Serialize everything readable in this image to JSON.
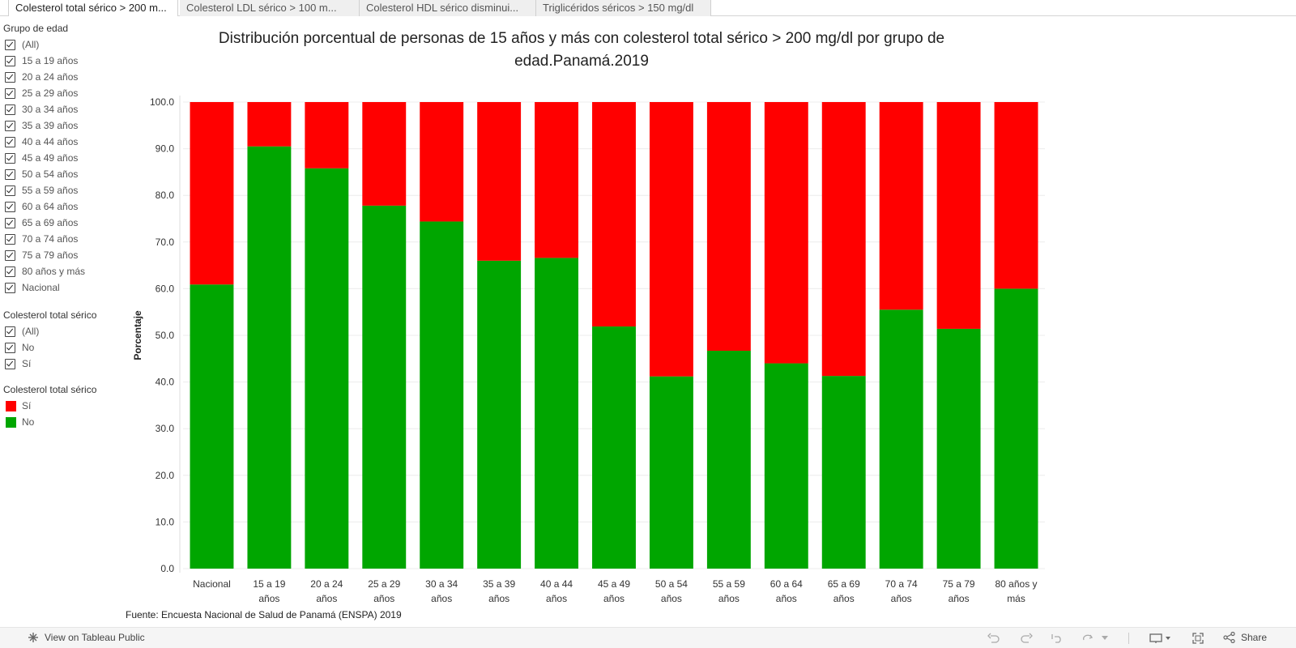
{
  "tabs": [
    "Colesterol total sérico > 200 m...",
    "Colesterol LDL sérico > 100 m...",
    "Colesterol HDL sérico disminui...",
    "Triglicéridos séricos > 150 mg/dl"
  ],
  "filters": {
    "age_group": {
      "title": "Grupo de edad",
      "items": [
        "(All)",
        "15 a 19 años",
        "20 a 24 años",
        "25 a 29 años",
        "30 a 34 años",
        "35 a 39 años",
        "40 a 44 años",
        "45 a 49 años",
        "50 a 54 años",
        "55 a 59 años",
        "60 a 64 años",
        "65 a 69 años",
        "70 a 74 años",
        "75 a 79 años",
        "80 años y más",
        "Nacional"
      ]
    },
    "cholesterol": {
      "title": "Colesterol total sérico",
      "items": [
        "(All)",
        "No",
        "Sí"
      ]
    }
  },
  "legend": {
    "title": "Colesterol total sérico",
    "items": [
      {
        "label": "Sí",
        "color": "#ff0000"
      },
      {
        "label": "No",
        "color": "#00a600"
      }
    ]
  },
  "chart_data": {
    "type": "bar",
    "stacked": true,
    "title": "Distribución porcentual de personas de 15 años y más con colesterol total sérico > 200 mg/dl por grupo de edad.Panamá.2019",
    "ylabel": "Porcentaje",
    "xlabel": "",
    "ylim": [
      0,
      100
    ],
    "yticks": [
      "0.0",
      "10.0",
      "20.0",
      "30.0",
      "40.0",
      "50.0",
      "60.0",
      "70.0",
      "80.0",
      "90.0",
      "100.0"
    ],
    "categories": [
      [
        "Nacional"
      ],
      [
        "15 a 19",
        "años"
      ],
      [
        "20 a 24",
        "años"
      ],
      [
        "25 a 29",
        "años"
      ],
      [
        "30 a 34",
        "años"
      ],
      [
        "35 a 39",
        "años"
      ],
      [
        "40 a 44",
        "años"
      ],
      [
        "45 a 49",
        "años"
      ],
      [
        "50 a 54",
        "años"
      ],
      [
        "55 a 59",
        "años"
      ],
      [
        "60 a 64",
        "años"
      ],
      [
        "65 a 69",
        "años"
      ],
      [
        "70 a 74",
        "años"
      ],
      [
        "75 a 79",
        "años"
      ],
      [
        "80 años y",
        "más"
      ]
    ],
    "series": [
      {
        "name": "No",
        "color": "#00a600",
        "values": [
          60.9,
          90.5,
          85.8,
          77.8,
          74.4,
          66.0,
          66.6,
          51.9,
          41.2,
          46.7,
          44.0,
          41.3,
          55.5,
          51.4,
          60.0
        ]
      },
      {
        "name": "Sí",
        "color": "#ff0000",
        "values": [
          39.1,
          9.5,
          14.2,
          22.2,
          25.6,
          34.0,
          33.4,
          48.1,
          58.8,
          53.3,
          56.0,
          58.7,
          44.5,
          48.6,
          40.0
        ]
      }
    ]
  },
  "source": "Fuente: Encuesta Nacional de Salud de Panamá (ENSPA) 2019",
  "footer": {
    "view_label": "View on Tableau Public",
    "share_label": "Share"
  }
}
